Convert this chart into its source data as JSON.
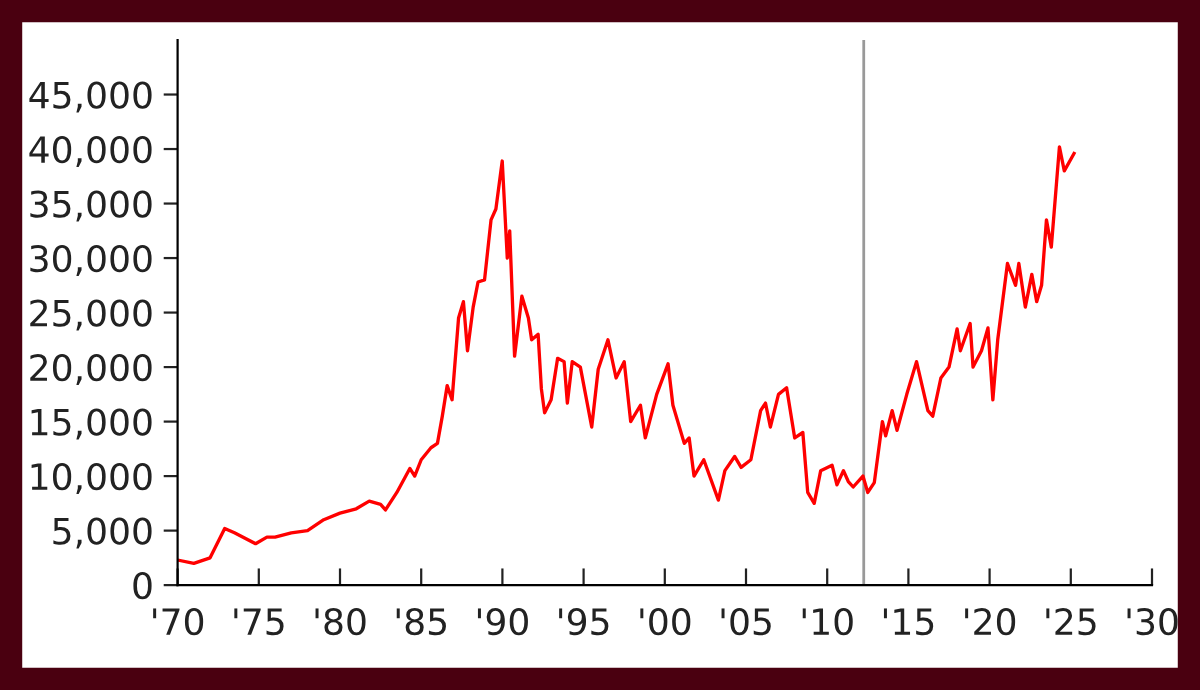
{
  "chart_data": {
    "type": "line",
    "x": [
      1970,
      1971,
      1972,
      1972.9,
      1973.5,
      1974.8,
      1975.5,
      1976,
      1977,
      1978,
      1979,
      1980,
      1981,
      1981.8,
      1982.5,
      1982.8,
      1983.5,
      1984.3,
      1984.6,
      1985,
      1985.6,
      1986,
      1986.3,
      1986.6,
      1986.9,
      1987.3,
      1987.6,
      1987.85,
      1988.2,
      1988.5,
      1988.9,
      1989.3,
      1989.6,
      1989.99,
      1990.3,
      1990.45,
      1990.75,
      1991.2,
      1991.6,
      1991.8,
      1992.2,
      1992.4,
      1992.6,
      1993,
      1993.4,
      1993.8,
      1994,
      1994.3,
      1994.8,
      1995.5,
      1995.9,
      1996.5,
      1997,
      1997.5,
      1997.9,
      1998.5,
      1998.8,
      1999.5,
      2000.2,
      2000.5,
      2001.2,
      2001.5,
      2001.8,
      2002.4,
      2003.3,
      2003.7,
      2004.3,
      2004.7,
      2005.3,
      2005.9,
      2006.2,
      2006.5,
      2007,
      2007.5,
      2008,
      2008.5,
      2008.8,
      2009.2,
      2009.6,
      2010.3,
      2010.6,
      2011,
      2011.3,
      2011.6,
      2012.2,
      2012.5,
      2012.9,
      2013.4,
      2013.6,
      2014,
      2014.3,
      2014.9,
      2015.5,
      2016.2,
      2016.5,
      2017,
      2017.5,
      2018,
      2018.2,
      2018.8,
      2018.98,
      2019.5,
      2019.9,
      2020.2,
      2020.5,
      2021.1,
      2021.6,
      2021.8,
      2022.2,
      2022.6,
      2022.9,
      2023.2,
      2023.5,
      2023.8,
      2024.3,
      2024.6,
      2025.2
    ],
    "series": [
      {
        "color": "#ff0000",
        "values": [
          2300,
          2000,
          2500,
          5200,
          4800,
          3800,
          4400,
          4400,
          4800,
          5000,
          6000,
          6600,
          7000,
          7700,
          7400,
          6900,
          8500,
          10700,
          10000,
          11500,
          12600,
          13000,
          15500,
          18300,
          17000,
          24500,
          26000,
          21500,
          25500,
          27800,
          28000,
          33500,
          34500,
          38900,
          30000,
          32500,
          21000,
          26500,
          24500,
          22500,
          23000,
          18000,
          15800,
          17000,
          20800,
          20500,
          16700,
          20500,
          20000,
          14500,
          19800,
          22500,
          19000,
          20500,
          15000,
          16500,
          13500,
          17500,
          20300,
          16500,
          13000,
          13500,
          10000,
          11500,
          7800,
          10500,
          11800,
          10800,
          11500,
          16000,
          16700,
          14500,
          17500,
          18100,
          13500,
          14000,
          8500,
          7500,
          10500,
          11000,
          9200,
          10500,
          9500,
          9000,
          10000,
          8500,
          9400,
          15000,
          13700,
          16000,
          14200,
          17500,
          20500,
          16000,
          15500,
          19000,
          20000,
          23500,
          21500,
          24000,
          20000,
          21500,
          23600,
          17000,
          22500,
          29500,
          27500,
          29500,
          25500,
          28500,
          26000,
          27500,
          33500,
          31000,
          40200,
          38000,
          39600
        ]
      }
    ],
    "xlim": [
      1970,
      2030
    ],
    "xticks": [
      {
        "value": 1970,
        "label": "'70"
      },
      {
        "value": 1975,
        "label": "'75"
      },
      {
        "value": 1980,
        "label": "'80"
      },
      {
        "value": 1985,
        "label": "'85"
      },
      {
        "value": 1990,
        "label": "'90"
      },
      {
        "value": 1995,
        "label": "'95"
      },
      {
        "value": 2000,
        "label": "'00"
      },
      {
        "value": 2005,
        "label": "'05"
      },
      {
        "value": 2010,
        "label": "'10"
      },
      {
        "value": 2015,
        "label": "'15"
      },
      {
        "value": 2020,
        "label": "'20"
      },
      {
        "value": 2025,
        "label": "'25"
      },
      {
        "value": 2030,
        "label": "'30"
      }
    ],
    "ylim": [
      0,
      50000
    ],
    "yticks": [
      {
        "value": 0,
        "label": "0"
      },
      {
        "value": 5000,
        "label": "5,000"
      },
      {
        "value": 10000,
        "label": "10,000"
      },
      {
        "value": 15000,
        "label": "15,000"
      },
      {
        "value": 20000,
        "label": "20,000"
      },
      {
        "value": 25000,
        "label": "25,000"
      },
      {
        "value": 30000,
        "label": "30,000"
      },
      {
        "value": 35000,
        "label": "35,000"
      },
      {
        "value": 40000,
        "label": "40,000"
      },
      {
        "value": 45000,
        "label": "45,000"
      }
    ],
    "ref_lines": [
      {
        "axis": "x",
        "value": 2012.25,
        "color": "#999999"
      }
    ],
    "grid": false,
    "marker": "none",
    "line_style": "solid"
  }
}
